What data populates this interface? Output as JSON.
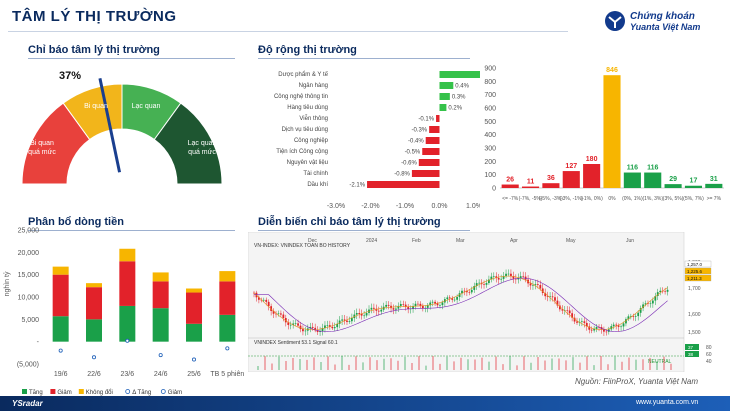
{
  "header": {
    "title": "TÂM LÝ THỊ TRƯỜNG",
    "logo_line1": "Chứng khoán",
    "logo_line2": "Yuanta Việt Nam"
  },
  "sentiment": {
    "section_title": "Chỉ báo tâm lý thị trường",
    "value_label": "37%",
    "value": 37,
    "zones": [
      {
        "label_1": "Bi quan",
        "label_2": "quá mức",
        "color": "#e8413c"
      },
      {
        "label_1": "Bi quan",
        "label_2": "",
        "color": "#f2b51b"
      },
      {
        "label_1": "Lạc quan",
        "label_2": "",
        "color": "#46b153"
      },
      {
        "label_1": "Lạc quan",
        "label_2": "quá mức",
        "color": "#1e5631"
      }
    ]
  },
  "breadth": {
    "section_title": "Độ rộng thị trường",
    "sector_chart": {
      "type": "bar",
      "categories": [
        "Dược phẩm & Y tế",
        "Ngân hàng",
        "Công nghệ thông tin",
        "Hàng tiêu dùng",
        "Viễn thông",
        "Dịch vụ tiêu dùng",
        "Công nghiệp",
        "Tiện ích Công cộng",
        "Nguyên vật liệu",
        "Tài chính",
        "Dầu khí"
      ],
      "values": [
        1.2,
        0.4,
        0.3,
        0.2,
        -0.1,
        -0.3,
        -0.4,
        -0.5,
        -0.6,
        -0.8,
        -2.1
      ],
      "value_labels": [
        "1.2%",
        "0.4%",
        "0.3%",
        "0.2%",
        "-0.1%",
        "-0.3%",
        "-0.4%",
        "-0.5%",
        "-0.6%",
        "-0.8%",
        "-2.1%"
      ],
      "xticks": [
        "-3.0%",
        "-2.0%",
        "-1.0%",
        "0.0%",
        "1.0%"
      ],
      "xlim": [
        -3.0,
        1.0
      ]
    },
    "distribution_chart": {
      "type": "bar",
      "categories": [
        "<= -7%",
        "(-7%, -5%)",
        "(-5%, -3%)",
        "(-3%, -1%)",
        "(-1%, 0%)",
        "0%",
        "(0%, 1%)",
        "(1%, 3%)",
        "(3%, 5%)",
        "(5%, 7%)",
        ">= 7%"
      ],
      "values": [
        26,
        11,
        36,
        127,
        180,
        846,
        116,
        116,
        29,
        17,
        31
      ],
      "colors": [
        "#e2222a",
        "#e2222a",
        "#e2222a",
        "#e2222a",
        "#e2222a",
        "#f7b500",
        "#1aa049",
        "#1aa049",
        "#1aa049",
        "#1aa049",
        "#1aa049"
      ],
      "yticks": [
        "900",
        "800",
        "700",
        "600",
        "500",
        "400",
        "300",
        "200",
        "100",
        "0"
      ],
      "ylim": [
        0,
        900
      ]
    }
  },
  "flow": {
    "section_title": "Phân bổ dòng tiền",
    "chart_data": {
      "type": "bar",
      "categories": [
        "19/6",
        "22/6",
        "23/6",
        "24/6",
        "25/6",
        "TB 5 phiên"
      ],
      "series": [
        {
          "name": "Tăng",
          "color": "#1aa049",
          "values": [
            5700,
            5000,
            8000,
            7500,
            4000,
            6000
          ]
        },
        {
          "name": "Giảm",
          "color": "#e2222a",
          "values": [
            9300,
            7200,
            10000,
            6000,
            7000,
            7500
          ]
        },
        {
          "name": "Không đổi",
          "color": "#f7b500",
          "values": [
            1800,
            900,
            2800,
            2000,
            900,
            2300
          ]
        }
      ],
      "delta_tang": [
        -2000,
        -3500,
        200,
        -3000,
        -4000,
        -1500
      ],
      "yticks": [
        "25,000",
        "20,000",
        "15,000",
        "10,000",
        "5,000",
        "-",
        "(5,000)"
      ],
      "ylabel": "nghìn tỷ",
      "ylim": [
        -5000,
        25000
      ],
      "legend": [
        "Tăng",
        "Giảm",
        "Không đổi",
        "Δ Tăng",
        "Giảm"
      ]
    }
  },
  "evolution": {
    "section_title": "Diễn biến chỉ báo tâm lý thị trường",
    "months": [
      "Dec",
      "2024",
      "Feb",
      "Mar",
      "Apr",
      "May",
      "Jun"
    ],
    "price_labels": [
      "1,800",
      "1,700",
      "1,600",
      "1,500"
    ],
    "badges": [
      "1,257.0",
      "1,225.6",
      "1,211.3"
    ],
    "osc_labels": [
      "80",
      "60",
      "40"
    ],
    "osc_badges": [
      "37",
      "38"
    ],
    "neutral_label": "NEUTRAL",
    "caption_top": "VN-INDEX: VNINDEX TOAN BO HISTORY",
    "caption_mid": "VNINDEX  Sentiment 53.1  Signal 60.1",
    "source": "Nguồn: FiinProX, Yuanta Việt Nam"
  },
  "footer": {
    "logo": "YSradar",
    "url": "www.yuanta.com.vn"
  }
}
